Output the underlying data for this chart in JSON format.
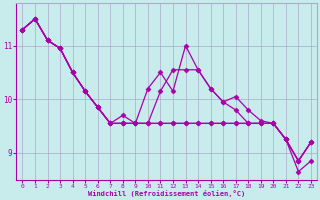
{
  "xlabel": "Windchill (Refroidissement éolien,°C)",
  "bg_color": "#c8ecec",
  "grid_color": "#aaaacc",
  "line_color": "#aa00aa",
  "x": [
    0,
    1,
    2,
    3,
    4,
    5,
    6,
    7,
    8,
    9,
    10,
    11,
    12,
    13,
    14,
    15,
    16,
    17,
    18,
    19,
    20,
    21,
    22,
    23
  ],
  "series": [
    [
      11.3,
      11.5,
      11.1,
      10.95,
      10.5,
      10.15,
      9.85,
      9.55,
      9.7,
      9.55,
      10.2,
      10.5,
      10.15,
      11.0,
      10.55,
      10.2,
      9.95,
      10.05,
      9.8,
      9.6,
      9.55,
      9.25,
      8.85,
      9.2
    ],
    [
      11.3,
      11.5,
      11.1,
      10.95,
      10.5,
      10.15,
      9.85,
      9.55,
      9.55,
      9.55,
      9.55,
      10.15,
      10.55,
      10.55,
      10.55,
      10.2,
      9.95,
      9.8,
      9.55,
      9.55,
      9.55,
      9.25,
      8.85,
      9.2
    ],
    [
      11.3,
      11.5,
      11.1,
      10.95,
      10.5,
      10.15,
      9.85,
      9.55,
      9.55,
      9.55,
      9.55,
      9.55,
      9.55,
      9.55,
      9.55,
      9.55,
      9.55,
      9.55,
      9.55,
      9.55,
      9.55,
      9.25,
      8.85,
      9.2
    ],
    [
      11.3,
      11.5,
      11.1,
      10.95,
      10.5,
      10.15,
      9.85,
      9.55,
      9.55,
      9.55,
      9.55,
      9.55,
      9.55,
      9.55,
      9.55,
      9.55,
      9.55,
      9.55,
      9.55,
      9.55,
      9.55,
      9.25,
      8.65,
      8.85
    ]
  ],
  "ylim": [
    8.5,
    11.8
  ],
  "yticks": [
    9,
    10,
    11
  ],
  "xlim": [
    -0.5,
    23.5
  ],
  "xticks": [
    0,
    1,
    2,
    3,
    4,
    5,
    6,
    7,
    8,
    9,
    10,
    11,
    12,
    13,
    14,
    15,
    16,
    17,
    18,
    19,
    20,
    21,
    22,
    23
  ],
  "marker": "D",
  "markersize": 2.5,
  "linewidth": 0.9
}
